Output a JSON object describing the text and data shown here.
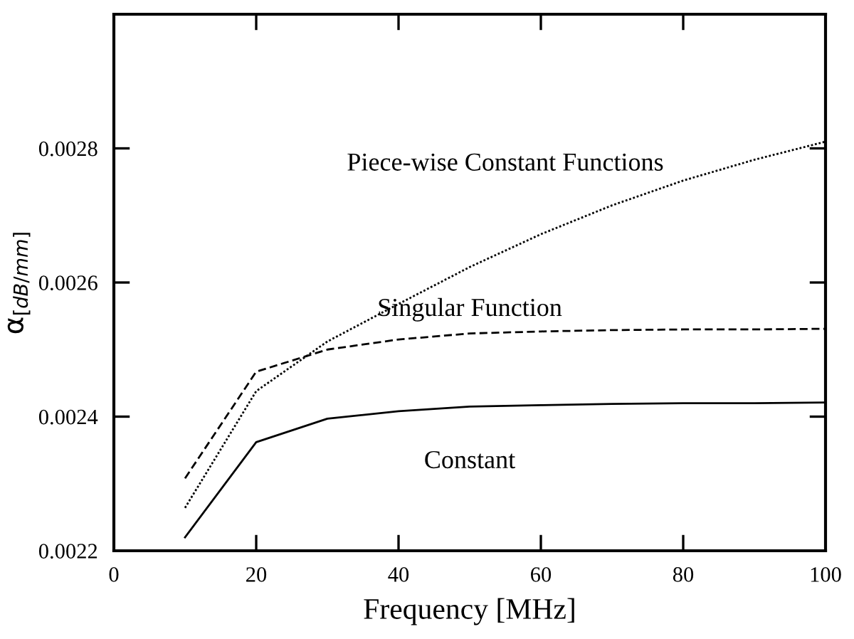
{
  "chart_data": {
    "type": "line",
    "xlabel": "Frequency [MHz]",
    "ylabel": "α$_{[dB/mm]}$",
    "x": [
      10,
      20,
      30,
      40,
      50,
      60,
      70,
      80,
      90,
      100
    ],
    "xlim": [
      0,
      100
    ],
    "xticks": [
      0,
      20,
      40,
      60,
      80,
      100
    ],
    "ylim": [
      0.0022,
      0.003
    ],
    "yticks": [
      0.0022,
      0.0024,
      0.0026,
      0.0028
    ],
    "grid": false,
    "legend": false,
    "marker": "none",
    "series": [
      {
        "name": "Piece-wise Constant Functions",
        "color": "#000000",
        "line_style": "dotted",
        "values": [
          0.002264,
          0.002438,
          0.002512,
          0.002568,
          0.002623,
          0.002672,
          0.002715,
          0.002752,
          0.002783,
          0.00281
        ]
      },
      {
        "name": "Singular Function",
        "color": "#000000",
        "line_style": "dashed",
        "values": [
          0.002308,
          0.002467,
          0.0025,
          0.002515,
          0.002524,
          0.002527,
          0.002529,
          0.00253,
          0.00253,
          0.002531
        ]
      },
      {
        "name": "Constant",
        "color": "#000000",
        "line_style": "solid",
        "values": [
          0.00222,
          0.002362,
          0.002397,
          0.002408,
          0.002415,
          0.002417,
          0.002419,
          0.00242,
          0.00242,
          0.002421
        ]
      }
    ]
  }
}
